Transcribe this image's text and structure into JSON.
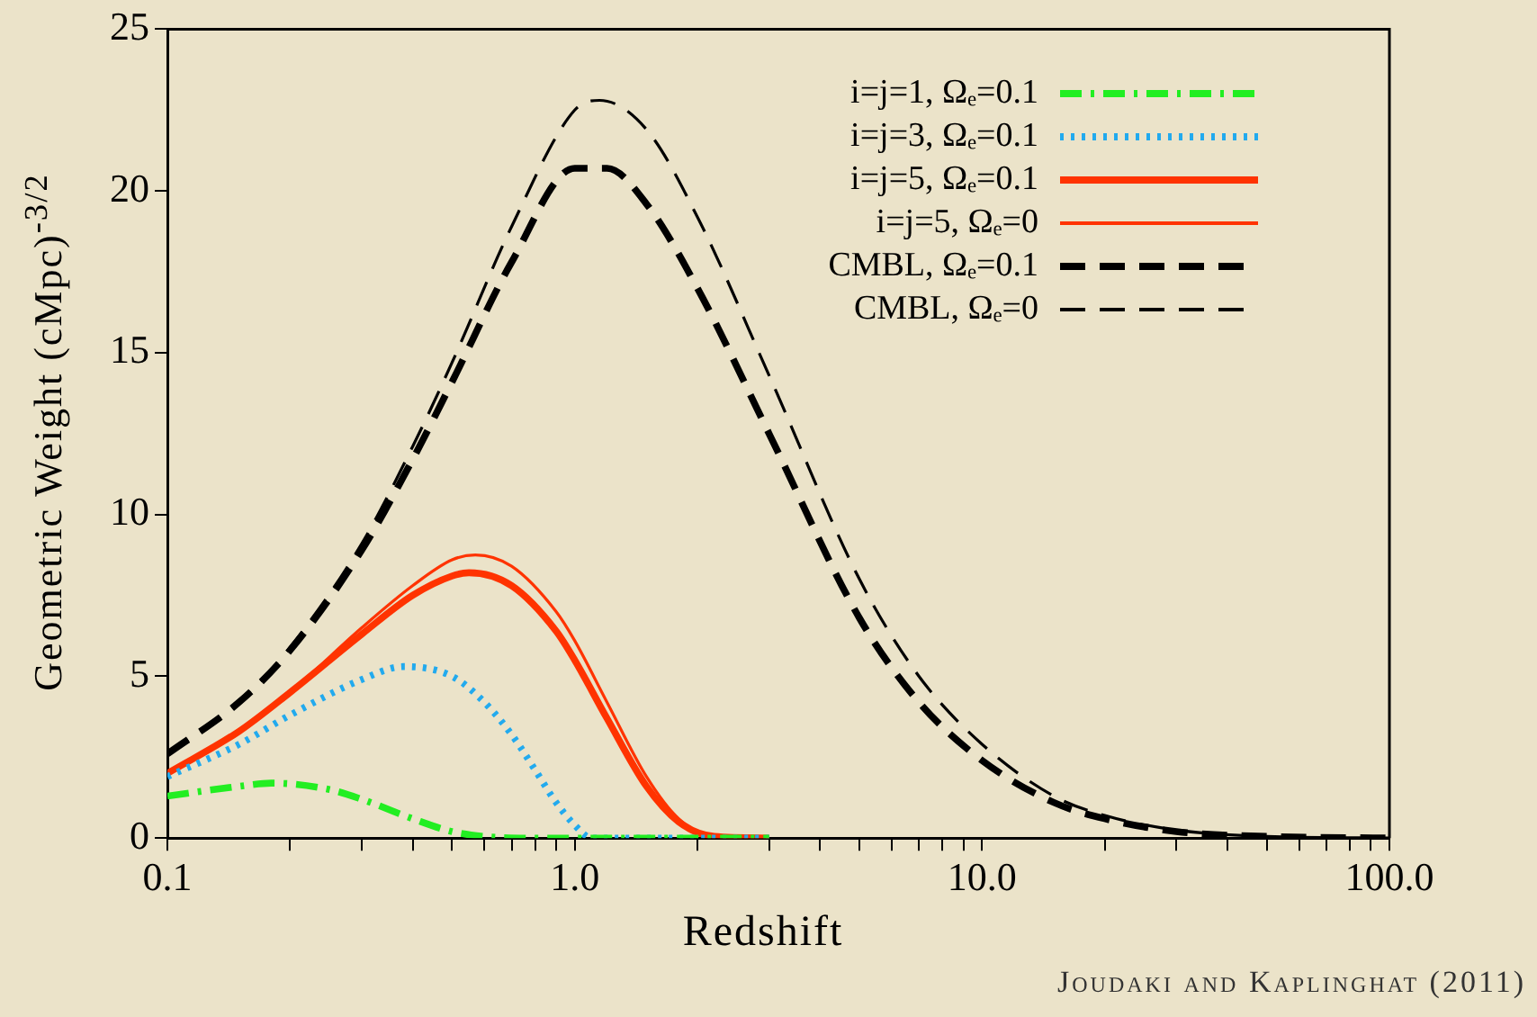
{
  "chart_data": {
    "type": "line",
    "xlabel": "Redshift",
    "ylabel": "Geometric Weight (cMpc)$^{-3/2}$",
    "annotations": [
      "Joudaki and Kaplinghat (2011)"
    ],
    "log": "x",
    "grid": false,
    "legend": "top right",
    "marker": "none",
    "xlim": [
      0.1,
      100
    ],
    "xticks": [
      0.1,
      {
        "value": 0.2,
        "label": null
      },
      {
        "value": 0.3,
        "label": null
      },
      {
        "value": 0.4,
        "label": null
      },
      {
        "value": 0.5,
        "label": null
      },
      {
        "value": 0.6,
        "label": null
      },
      {
        "value": 0.7,
        "label": null
      },
      {
        "value": 0.8,
        "label": null
      },
      {
        "value": 0.9,
        "label": null
      },
      {
        "value": 1,
        "label": "1.0"
      },
      {
        "value": 2,
        "label": null
      },
      {
        "value": 3,
        "label": null
      },
      {
        "value": 4,
        "label": null
      },
      {
        "value": 5,
        "label": null
      },
      {
        "value": 6,
        "label": null
      },
      {
        "value": 7,
        "label": null
      },
      {
        "value": 8,
        "label": null
      },
      {
        "value": 9,
        "label": null
      },
      {
        "value": 10,
        "label": "10.0"
      },
      {
        "value": 20,
        "label": null
      },
      {
        "value": 30,
        "label": null
      },
      {
        "value": 40,
        "label": null
      },
      {
        "value": 50,
        "label": null
      },
      {
        "value": 60,
        "label": null
      },
      {
        "value": 70,
        "label": null
      },
      {
        "value": 80,
        "label": null
      },
      {
        "value": 90,
        "label": null
      },
      {
        "value": 100,
        "label": "100.0"
      }
    ],
    "ylim": [
      0,
      25
    ],
    "yticks": [
      0,
      5,
      10,
      15,
      20,
      25
    ],
    "series": [
      {
        "name": "i=j=1, Ωₑ=0.1",
        "color": "#22ee22",
        "line_style": "dashdot",
        "x": [
          0.1,
          0.15,
          0.18,
          0.25,
          0.3,
          0.4,
          0.5,
          0.6,
          0.8,
          1,
          3
        ],
        "values": [
          1.3,
          1.6,
          1.7,
          1.5,
          1.2,
          0.6,
          0.2,
          0.05,
          0,
          0,
          0
        ]
      },
      {
        "name": "i=j=3, Ωₑ=0.1",
        "color": "#22aaee",
        "line_style": "dotted",
        "x": [
          0.1,
          0.15,
          0.2,
          0.3,
          0.38,
          0.5,
          0.6,
          0.7,
          0.8,
          0.9,
          1,
          1.1,
          2,
          3
        ],
        "values": [
          1.9,
          2.9,
          3.8,
          4.9,
          5.3,
          5.0,
          4.2,
          3.2,
          2.1,
          1.1,
          0.4,
          0,
          0,
          0
        ]
      },
      {
        "name": "i=j=5, Ωₑ=0.1",
        "color": "#ff3300",
        "line_style": "solid",
        "x": [
          0.1,
          0.15,
          0.2,
          0.3,
          0.4,
          0.5,
          0.55,
          0.7,
          0.9,
          1,
          1.2,
          1.5,
          1.8,
          2.2,
          3
        ],
        "values": [
          2.0,
          3.3,
          4.5,
          6.3,
          7.5,
          8.1,
          8.2,
          7.8,
          6.4,
          5.5,
          3.7,
          1.6,
          0.5,
          0.05,
          0
        ]
      },
      {
        "name": "i=j=5, Ωₑ=0",
        "color": "#ff3300",
        "line_style": "solid",
        "x": [
          0.1,
          0.15,
          0.2,
          0.3,
          0.4,
          0.5,
          0.57,
          0.7,
          0.9,
          1,
          1.2,
          1.5,
          1.8,
          2.2,
          3
        ],
        "values": [
          2.0,
          3.3,
          4.5,
          6.5,
          7.8,
          8.6,
          8.75,
          8.4,
          7.0,
          6.1,
          4.2,
          1.9,
          0.6,
          0.05,
          0
        ]
      },
      {
        "name": "CMBL, Ωₑ=0.1",
        "color": "#000000",
        "line_style": "dashed",
        "x": [
          0.1,
          0.15,
          0.2,
          0.3,
          0.4,
          0.5,
          0.7,
          1,
          1.2,
          1.5,
          2,
          3,
          5,
          7,
          10,
          15,
          20,
          30,
          50,
          100
        ],
        "values": [
          2.6,
          4.2,
          5.8,
          8.9,
          11.7,
          14.1,
          17.8,
          20.7,
          20.7,
          19.6,
          17.0,
          12.5,
          6.8,
          4.2,
          2.4,
          1.1,
          0.6,
          0.2,
          0.05,
          0
        ]
      },
      {
        "name": "CMBL, Ωₑ=0",
        "color": "#000000",
        "line_style": "dashed",
        "x": [
          0.1,
          0.15,
          0.2,
          0.3,
          0.4,
          0.5,
          0.7,
          1,
          1.15,
          1.5,
          2,
          3,
          5,
          7,
          10,
          15,
          20,
          30,
          50,
          100
        ],
        "values": [
          2.6,
          4.2,
          5.9,
          9.1,
          12.1,
          14.7,
          18.9,
          22.5,
          22.8,
          21.9,
          19.2,
          14.3,
          8.0,
          5.0,
          2.9,
          1.3,
          0.7,
          0.25,
          0.05,
          0
        ]
      }
    ]
  }
}
